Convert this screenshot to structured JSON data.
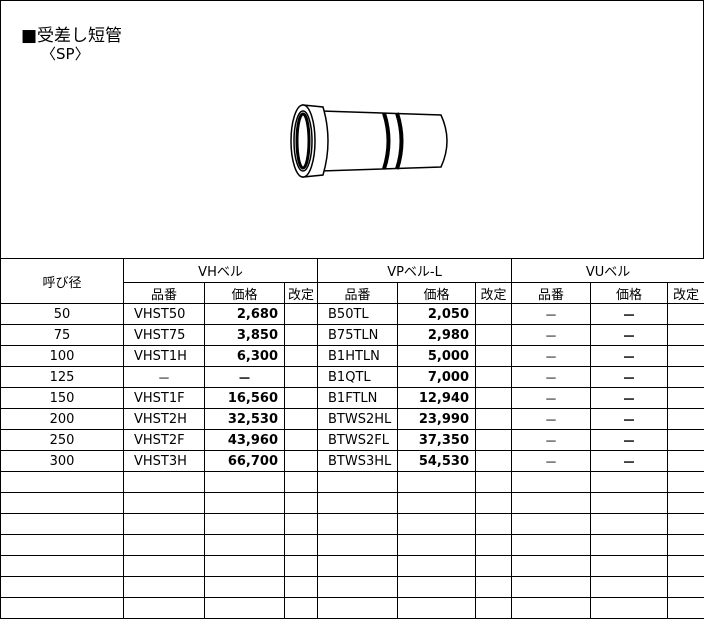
{
  "header": {
    "title": "■受差し短管",
    "subtitle": "〈SP〉"
  },
  "table": {
    "size_header": "呼び径",
    "groups": [
      "VHベル",
      "VPベル-L",
      "VUベル"
    ],
    "subheaders": [
      "品番",
      "価格",
      "改定"
    ],
    "rows": [
      [
        "50",
        "VHST50",
        "2,680",
        "B50TL",
        "2,050",
        "－",
        "－"
      ],
      [
        "75",
        "VHST75",
        "3,850",
        "B75TLN",
        "2,980",
        "－",
        "－"
      ],
      [
        "100",
        "VHST1H",
        "6,300",
        "B1HTLN",
        "5,000",
        "－",
        "－"
      ],
      [
        "125",
        "－",
        "－",
        "B1QTL",
        "7,000",
        "－",
        "－"
      ],
      [
        "150",
        "VHST1F",
        "16,560",
        "B1FTLN",
        "12,940",
        "－",
        "－"
      ],
      [
        "200",
        "VHST2H",
        "32,530",
        "BTWS2HL",
        "23,990",
        "－",
        "－"
      ],
      [
        "250",
        "VHST2F",
        "43,960",
        "BTWS2FL",
        "37,350",
        "－",
        "－"
      ],
      [
        "300",
        "VHST3H",
        "66,700",
        "BTWS3HL",
        "54,530",
        "－",
        "－"
      ]
    ]
  }
}
